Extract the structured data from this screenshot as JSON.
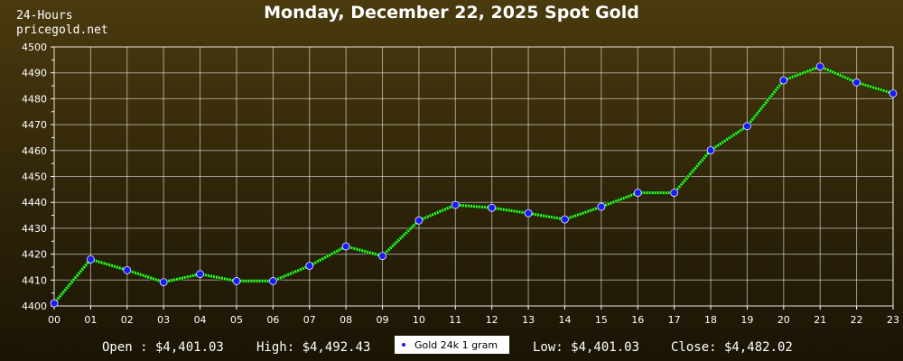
{
  "header": {
    "period": "24-Hours",
    "site": "pricegold.net",
    "title": "Monday, December 22, 2025 Spot Gold"
  },
  "stats": {
    "open": "Open : $4,401.03",
    "high": "High: $4,492.43",
    "low": "Low: $4,401.03",
    "close": "Close: $4,482.02"
  },
  "colors": {
    "line": "#33ff22",
    "marker": "#1a1aff",
    "grid": "#ffffff"
  },
  "chart_data": {
    "type": "line",
    "title": "Monday, December 22, 2025 Spot Gold",
    "xlabel": "",
    "ylabel": "",
    "categories": [
      "00",
      "01",
      "02",
      "03",
      "04",
      "05",
      "06",
      "07",
      "08",
      "09",
      "10",
      "11",
      "12",
      "13",
      "14",
      "15",
      "16",
      "17",
      "18",
      "19",
      "20",
      "21",
      "22",
      "23"
    ],
    "ylim": [
      4400,
      4500
    ],
    "yticks": [
      4400,
      4410,
      4420,
      4430,
      4440,
      4450,
      4460,
      4470,
      4480,
      4490,
      4500
    ],
    "grid": true,
    "legend": "bottom-center",
    "series": [
      {
        "name": "Gold 24k 1 gram",
        "values": [
          4401.03,
          4418.0,
          4413.8,
          4409.2,
          4412.3,
          4409.6,
          4409.6,
          4415.5,
          4423.0,
          4419.3,
          4433.0,
          4439.0,
          4437.9,
          4435.8,
          4433.4,
          4438.3,
          4443.7,
          4443.7,
          4460.1,
          4469.4,
          4487.1,
          4492.43,
          4486.3,
          4482.02
        ]
      }
    ]
  }
}
